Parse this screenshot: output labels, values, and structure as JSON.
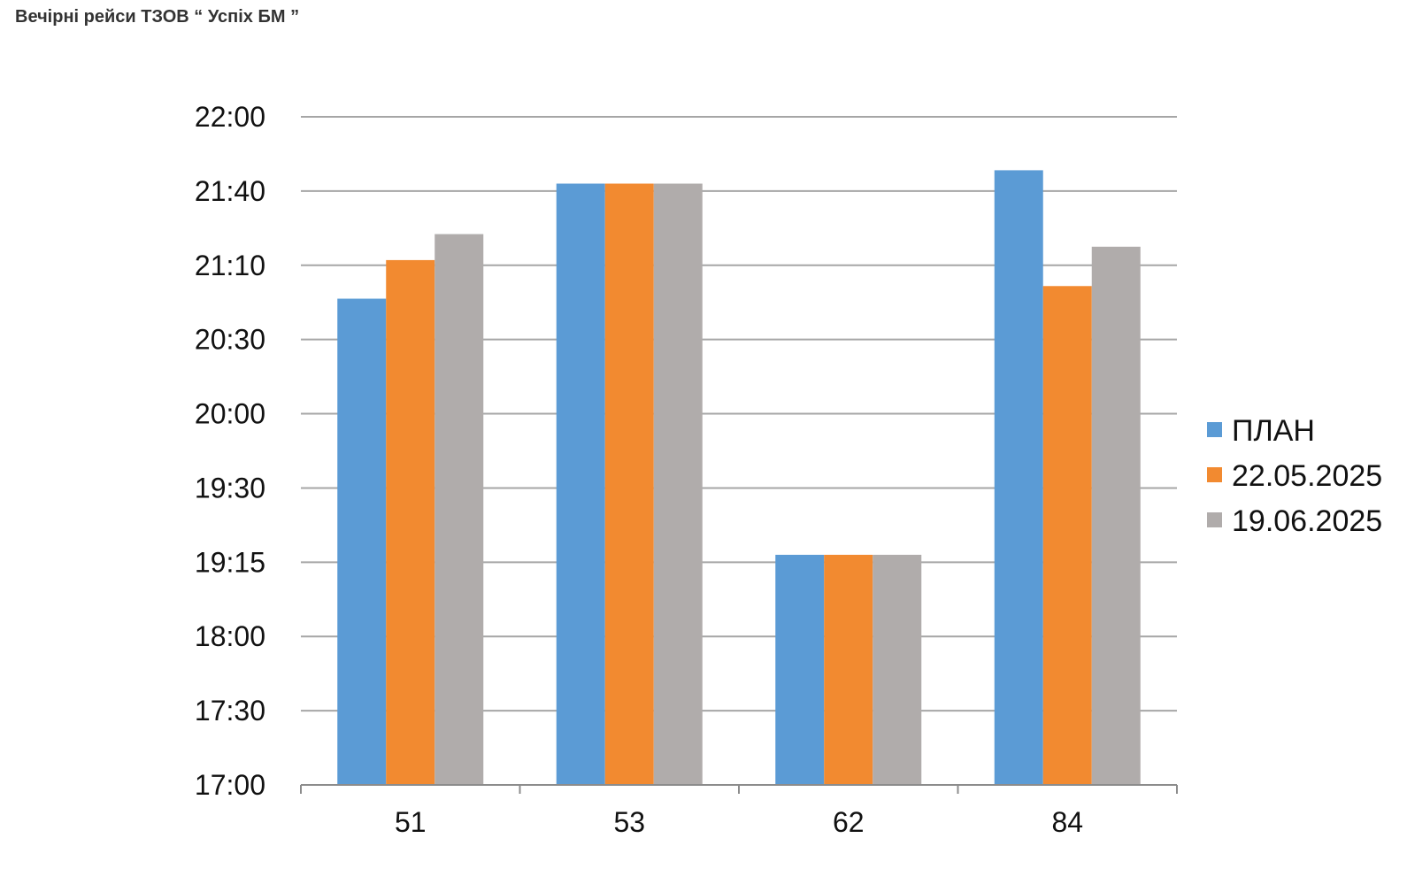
{
  "title": "Вечірні рейси ТЗОВ “ Успіх БМ ”",
  "chart_data": {
    "type": "bar",
    "categories": [
      "51",
      "53",
      "62",
      "84"
    ],
    "y_ticks": [
      "17:00",
      "17:30",
      "18:00",
      "19:15",
      "19:30",
      "20:00",
      "20:30",
      "21:10",
      "21:40",
      "22:00"
    ],
    "ylim": [
      0,
      9
    ],
    "grid": true,
    "legend_position": "right",
    "series": [
      {
        "name": "ПЛАН",
        "color": "#5B9BD5",
        "values": [
          6.55,
          8.1,
          3.1,
          8.28
        ]
      },
      {
        "name": "22.05.2025",
        "color": "#F28A30",
        "values": [
          7.07,
          8.1,
          3.1,
          6.72
        ]
      },
      {
        "name": "19.06.2025",
        "color": "#B0ACAB",
        "values": [
          7.42,
          8.1,
          3.1,
          7.25
        ]
      }
    ]
  }
}
